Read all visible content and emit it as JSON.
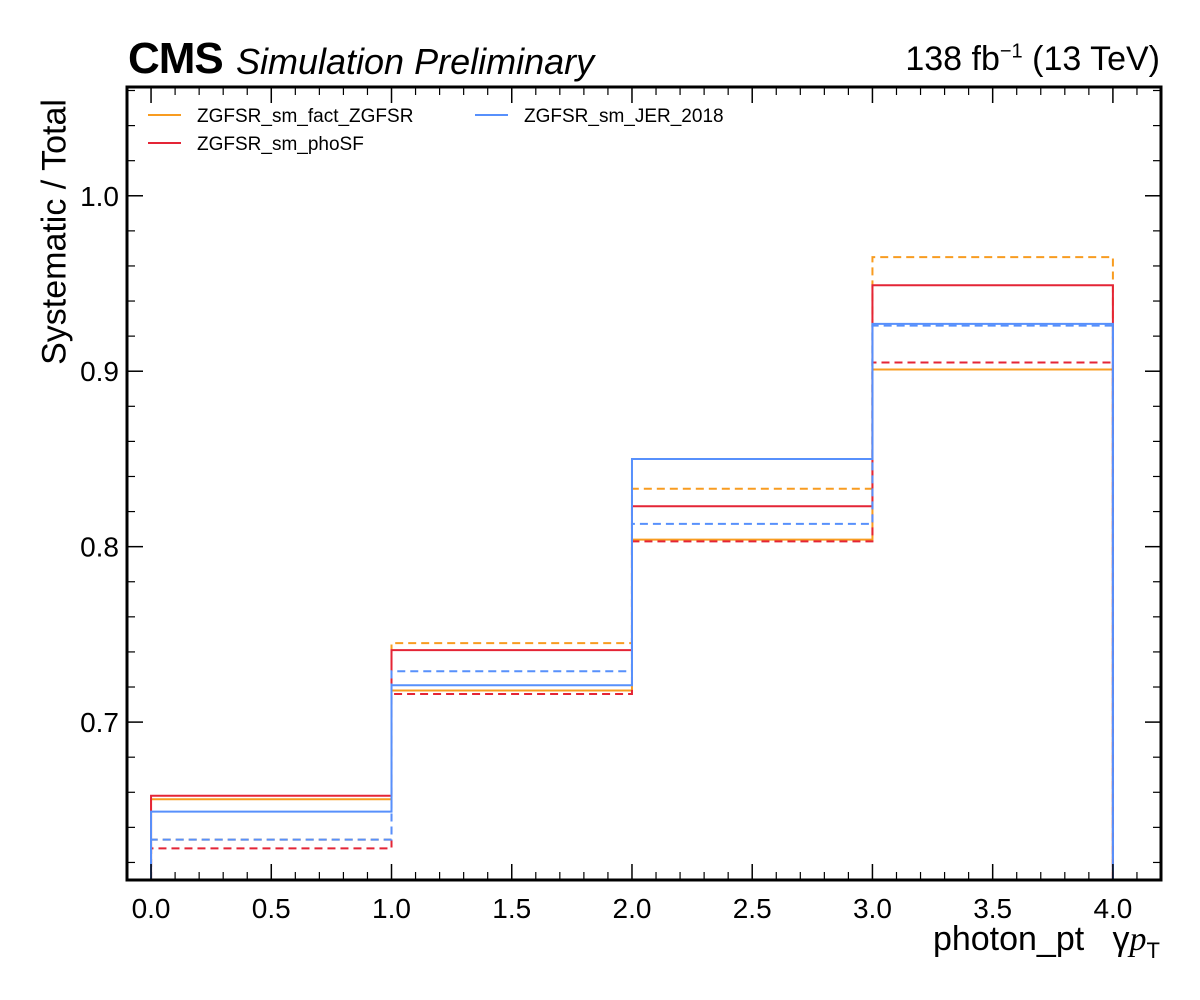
{
  "header": {
    "experiment": "CMS",
    "status": "Simulation Preliminary",
    "lumi_value": "138 fb",
    "lumi_exponent": "−1",
    "lumi_energy": " (13 TeV)"
  },
  "axes": {
    "ylabel": "Systematic / Total",
    "xlabel_prefix": "photon_pt",
    "xlabel_gamma": "γ",
    "xlabel_p": "p",
    "xlabel_sub": "T"
  },
  "chart_data": {
    "type": "line",
    "drawstyle": "step",
    "title": "",
    "xlim": [
      -0.1,
      4.2
    ],
    "ylim": [
      0.61,
      1.062
    ],
    "xticks": [
      0.0,
      0.5,
      1.0,
      1.5,
      2.0,
      2.5,
      3.0,
      3.5,
      4.0
    ],
    "xtick_labels": [
      "0.0",
      "0.5",
      "1.0",
      "1.5",
      "2.0",
      "2.5",
      "3.0",
      "3.5",
      "4.0"
    ],
    "yticks": [
      0.7,
      0.8,
      0.9,
      1.0
    ],
    "ytick_labels": [
      "0.7",
      "0.8",
      "0.9",
      "1.0"
    ],
    "bin_edges": [
      0,
      1,
      2,
      3,
      4
    ],
    "grid": false,
    "legend": {
      "placement": "top-left",
      "columns": 2
    },
    "series": [
      {
        "name": "ZGFSR_sm_fact_ZGFSR",
        "color": "#f89c20",
        "style": "solid",
        "values": [
          0.656,
          0.718,
          0.804,
          0.901
        ]
      },
      {
        "name": "",
        "color": "#f89c20",
        "style": "dashed",
        "values": [
          0.633,
          0.745,
          0.833,
          0.965
        ]
      },
      {
        "name": "ZGFSR_sm_phoSF",
        "color": "#e42536",
        "style": "solid",
        "values": [
          0.658,
          0.741,
          0.823,
          0.949
        ]
      },
      {
        "name": "",
        "color": "#e42536",
        "style": "dashed",
        "values": [
          0.628,
          0.716,
          0.803,
          0.905
        ]
      },
      {
        "name": "ZGFSR_sm_JER_2018",
        "color": "#5790fc",
        "style": "solid",
        "values": [
          0.649,
          0.721,
          0.85,
          0.927
        ]
      },
      {
        "name": "",
        "color": "#5790fc",
        "style": "dashed",
        "values": [
          0.633,
          0.729,
          0.813,
          0.926
        ]
      }
    ]
  }
}
